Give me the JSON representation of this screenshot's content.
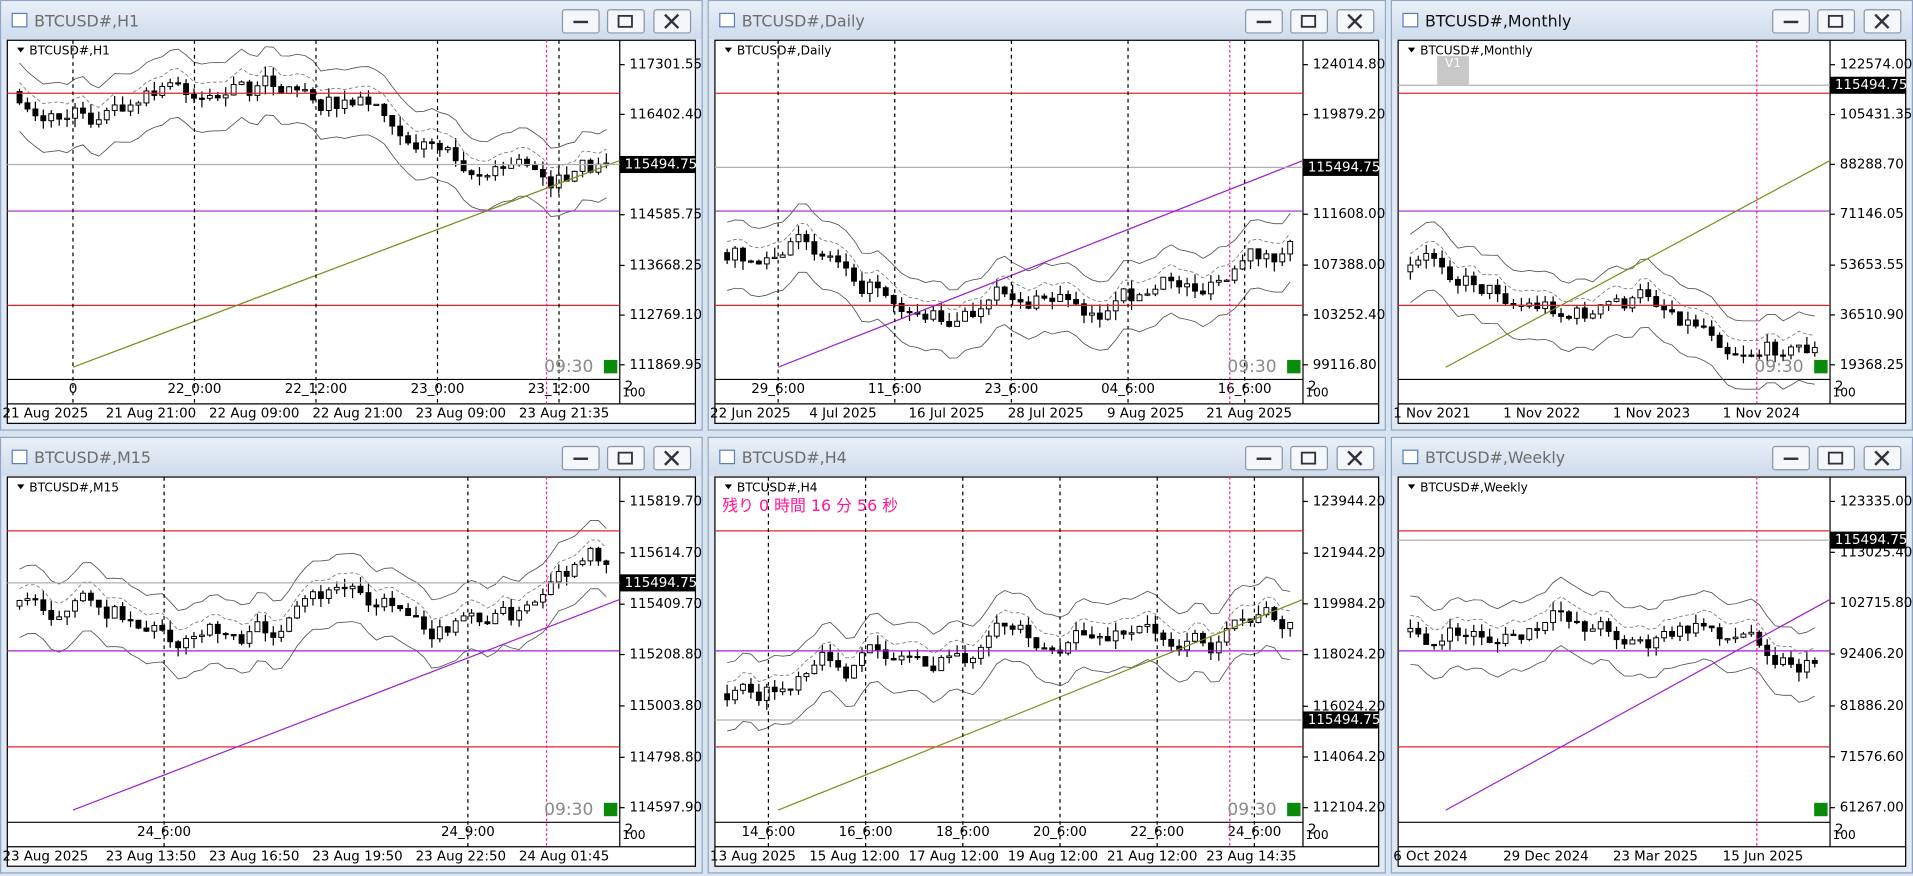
{
  "windows": [
    {
      "title": "BTCUSD#,H1",
      "chart_label": "BTCUSD#,H1",
      "price_labels": [
        "117301.55",
        "116402.40",
        "114585.75",
        "113668.25",
        "112769.10",
        "111869.95"
      ],
      "current_price": "115494.75",
      "separator_labels": [
        "0",
        "22_0:00",
        "22_12:00",
        "23_0:00",
        "23_12:00"
      ],
      "time_labels": [
        "21 Aug 2025",
        "21 Aug 21:00",
        "22 Aug 09:00",
        "22 Aug 21:00",
        "23 Aug 09:00",
        "23 Aug 21:35"
      ],
      "indicator_labels": [
        "2",
        "100"
      ],
      "countdown": "09:30"
    },
    {
      "title": "BTCUSD#,Daily",
      "chart_label": "BTCUSD#,Daily",
      "price_labels": [
        "124014.80",
        "119879.20",
        "111608.00",
        "107388.00",
        "103252.40",
        "99116.80"
      ],
      "current_price": "115494.75",
      "separator_labels": [
        "29_6:00",
        "11_6:00",
        "23_6:00",
        "04_6:00",
        "16_6:00"
      ],
      "time_labels": [
        "22 Jun 2025",
        "4 Jul 2025",
        "16 Jul 2025",
        "28 Jul 2025",
        "9 Aug 2025",
        "21 Aug 2025"
      ],
      "indicator_labels": [
        "2",
        "100"
      ],
      "countdown": "09:30"
    },
    {
      "title": "BTCUSD#,Monthly",
      "chart_label": "BTCUSD#,Monthly",
      "price_labels": [
        "122574.00",
        "105431.35",
        "88288.70",
        "71146.05",
        "53653.55",
        "36510.90",
        "19368.25"
      ],
      "current_price": "115494.75",
      "separator_labels": [],
      "time_labels": [
        "1 Nov 2021",
        "1 Nov 2022",
        "1 Nov 2023",
        "1 Nov 2024"
      ],
      "indicator_labels": [
        "2",
        "100"
      ],
      "countdown": "09:30",
      "button": "V1"
    },
    {
      "title": "BTCUSD#,M15",
      "chart_label": "BTCUSD#,M15",
      "price_labels": [
        "115819.70",
        "115614.70",
        "115409.70",
        "115208.80",
        "115003.80",
        "114798.80",
        "114597.90"
      ],
      "current_price": "115494.75",
      "separator_labels": [
        "24_6:00",
        "24_9:00"
      ],
      "time_labels": [
        "23 Aug 2025",
        "23 Aug 13:50",
        "23 Aug 16:50",
        "23 Aug 19:50",
        "23 Aug 22:50",
        "24 Aug 01:45"
      ],
      "indicator_labels": [
        "2",
        "100"
      ],
      "countdown": "09:30"
    },
    {
      "title": "BTCUSD#,H4",
      "chart_label": "BTCUSD#,H4",
      "price_labels": [
        "123944.20",
        "121944.20",
        "119984.20",
        "118024.20",
        "116024.20",
        "114064.20",
        "112104.20"
      ],
      "current_price": "115494.75",
      "separator_labels": [
        "14_6:00",
        "16_6:00",
        "18_6:00",
        "20_6:00",
        "22_6:00",
        "24_6:00"
      ],
      "time_labels": [
        "13 Aug 2025",
        "15 Aug 12:00",
        "17 Aug 12:00",
        "19 Aug 12:00",
        "21 Aug 12:00",
        "23 Aug 14:35"
      ],
      "indicator_labels": [
        "2",
        "100"
      ],
      "countdown": "09:30",
      "remaining": "残り 0 時間 16 分 56 秒"
    },
    {
      "title": "BTCUSD#,Weekly",
      "chart_label": "BTCUSD#,Weekly",
      "price_labels": [
        "123335.00",
        "113025.40",
        "102715.80",
        "92406.20",
        "81886.20",
        "71576.60",
        "61267.00"
      ],
      "current_price": "115494.75",
      "separator_labels": [],
      "time_labels": [
        "6 Oct 2024",
        "29 Dec 2024",
        "23 Mar 2025",
        "15 Jun 2025"
      ],
      "indicator_labels": [
        "2",
        "100"
      ]
    }
  ]
}
